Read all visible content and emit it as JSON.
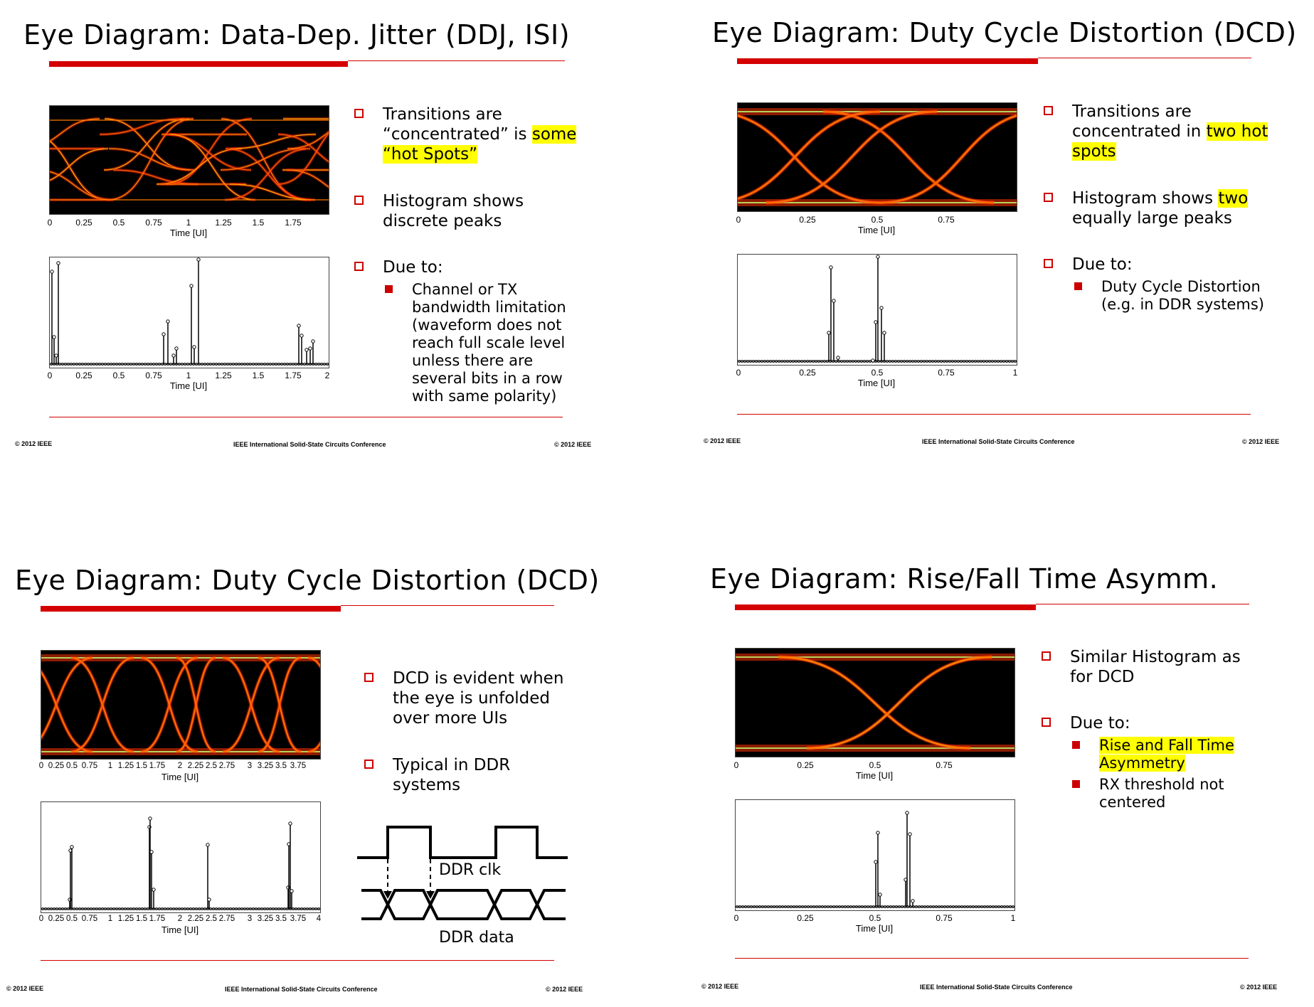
{
  "slides": [
    {
      "title": "Eye Diagram: Data-Dep. Jitter (DDJ, ISI)",
      "eye_ticks": [
        "0",
        "0.25",
        "0.5",
        "0.75",
        "1",
        "1.25",
        "1.5",
        "1.75"
      ],
      "eye_xlabel": "Time [UI]",
      "hist_ticks": [
        "0",
        "0.25",
        "0.5",
        "0.75",
        "1",
        "1.25",
        "1.5",
        "1.75",
        "2"
      ],
      "hist_xlabel": "Time [UI]",
      "bullets": [
        {
          "lines": [
            "Transitions are",
            "“concentrated” is ",
            "some",
            "“hot Spots”"
          ]
        },
        {
          "lines": [
            "Histogram shows",
            "discrete peaks"
          ]
        },
        {
          "lines": [
            "Due to:"
          ]
        }
      ],
      "sub_bullets": [
        {
          "lines": [
            "Channel or TX",
            "bandwidth limitation",
            "(waveform does not",
            "reach full scale level",
            "unless there are",
            "several bits in a row",
            "with same polarity)"
          ]
        }
      ],
      "footer": {
        "left": "© 2012 IEEE",
        "center": "IEEE International Solid-State Circuits Conference",
        "right": "© 2012 IEEE"
      }
    },
    {
      "title": "Eye Diagram: Duty Cycle Distortion (DCD)",
      "eye_ticks": [
        "0",
        "0.25",
        "0.5",
        "0.75"
      ],
      "eye_xlabel": "Time [UI]",
      "hist_ticks": [
        "0",
        "0.25",
        "0.5",
        "0.75",
        "1"
      ],
      "hist_xlabel": "Time [UI]",
      "bullets": [
        {
          "lines": [
            "Transitions are",
            "concentrated in ",
            "two hot",
            "spots"
          ]
        },
        {
          "lines": [
            "Histogram shows ",
            "two",
            "equally large peaks"
          ]
        },
        {
          "lines": [
            "Due to:"
          ]
        }
      ],
      "sub_bullets": [
        {
          "lines": [
            "Duty Cycle Distortion",
            "(e.g. in DDR systems)"
          ]
        }
      ],
      "footer": {
        "left": "© 2012 IEEE",
        "center": "IEEE International Solid-State Circuits Conference",
        "right": "© 2012 IEEE"
      }
    },
    {
      "title": "Eye Diagram: Duty Cycle Distortion (DCD)",
      "eye_ticks": [
        "0",
        "0.25",
        "0.5",
        "0.75",
        "1",
        "1.25",
        "1.5",
        "1.75",
        "2",
        "2.25",
        "2.5",
        "2.75",
        "3",
        "3.25",
        "3.5",
        "3.75"
      ],
      "eye_xlabel": "Time [UI]",
      "hist_ticks": [
        "0",
        "0.25",
        "0.5",
        "0.75",
        "1",
        "1.25",
        "1.5",
        "1.75",
        "2",
        "2.25",
        "2.5",
        "2.75",
        "3",
        "3.25",
        "3.5",
        "3.75",
        "4"
      ],
      "hist_xlabel": "Time [UI]",
      "bullets": [
        {
          "lines": [
            "DCD is evident when",
            "the eye is unfolded",
            "over more UIs"
          ]
        },
        {
          "lines": [
            "Typical in DDR",
            "systems"
          ]
        }
      ],
      "ddr": {
        "clk_label": "DDR clk",
        "data_label": "DDR data"
      },
      "footer": {
        "left": "© 2012 IEEE",
        "center": "IEEE International Solid-State Circuits Conference",
        "right": "© 2012 IEEE"
      }
    },
    {
      "title": "Eye Diagram: Rise/Fall Time Asymm.",
      "eye_ticks": [
        "0",
        "0.25",
        "0.5",
        "0.75"
      ],
      "eye_xlabel": "Time [UI]",
      "hist_ticks": [
        "0",
        "0.25",
        "0.5",
        "0.75",
        "1"
      ],
      "hist_xlabel": "Time [UI]",
      "bullets": [
        {
          "lines": [
            "Similar Histogram as",
            "for DCD"
          ]
        },
        {
          "lines": [
            "Due to:"
          ]
        }
      ],
      "sub_bullets": [
        {
          "lines": [
            "Rise and Fall Time",
            "Asymmetry"
          ]
        },
        {
          "lines": [
            "RX threshold not",
            "centered"
          ]
        }
      ],
      "footer": {
        "left": "© 2012 IEEE",
        "center": "IEEE International Solid-State Circuits Conference",
        "right": "© 2012 IEEE"
      }
    }
  ],
  "colors": {
    "accent_red": "#d40000",
    "highlight": "#ffff00",
    "eye_bg": "#000000",
    "trace": "#ff4a00"
  }
}
